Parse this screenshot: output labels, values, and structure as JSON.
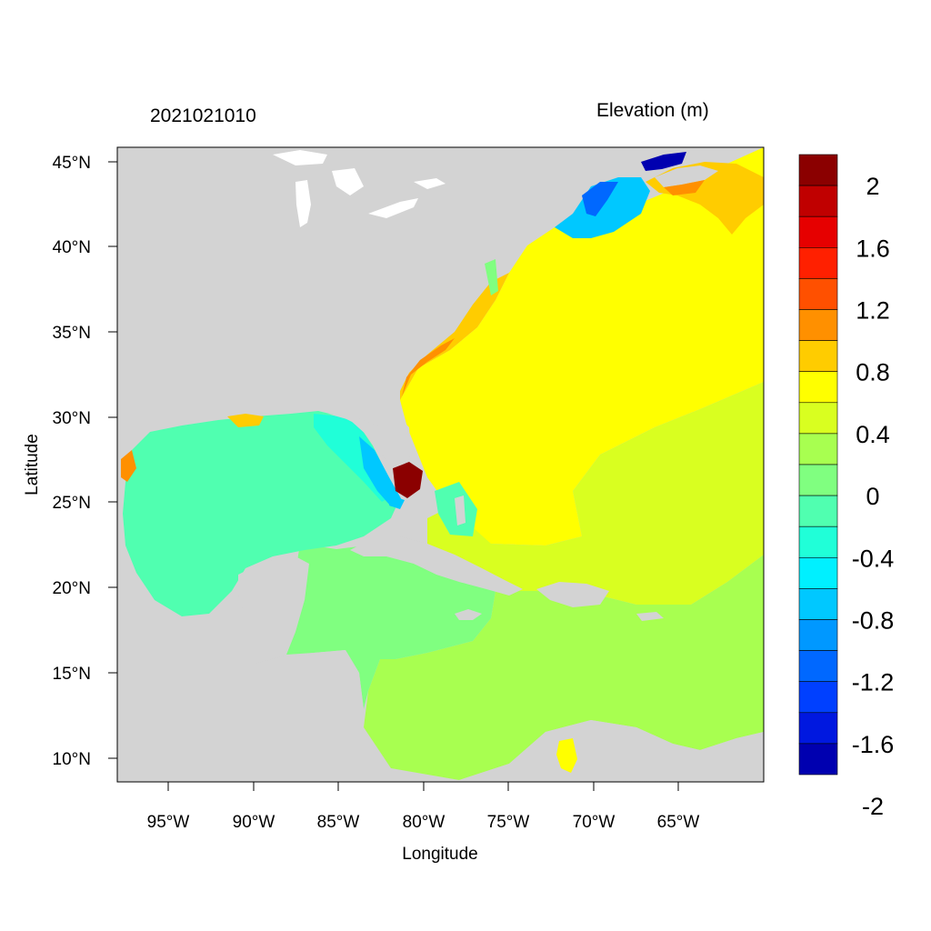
{
  "header": {
    "timestamp": "2021021010",
    "variable_title": "Elevation (m)"
  },
  "axes": {
    "xlabel": "Longitude",
    "ylabel": "Latitude",
    "x_ticks": [
      "95°W",
      "90°W",
      "85°W",
      "80°W",
      "75°W",
      "70°W",
      "65°W"
    ],
    "y_ticks": [
      "45°N",
      "40°N",
      "35°N",
      "30°N",
      "25°N",
      "20°N",
      "15°N",
      "10°N"
    ]
  },
  "colorbar": {
    "labels": [
      "2",
      "1.6",
      "1.2",
      "0.8",
      "0.4",
      "0",
      "-0.4",
      "-0.8",
      "-1.2",
      "-1.6",
      "-2"
    ],
    "colors": [
      "#8b0000",
      "#c00000",
      "#e60000",
      "#ff2000",
      "#ff5000",
      "#ff9000",
      "#ffcc00",
      "#ffff00",
      "#d9ff20",
      "#a8ff50",
      "#80ff80",
      "#50ffb0",
      "#20ffd8",
      "#00f0ff",
      "#00c8ff",
      "#0098ff",
      "#0068ff",
      "#0040ff",
      "#0018e0",
      "#0000b0"
    ]
  },
  "map_colors": {
    "land": "#d3d3d3",
    "lake": "#ffffff"
  }
}
